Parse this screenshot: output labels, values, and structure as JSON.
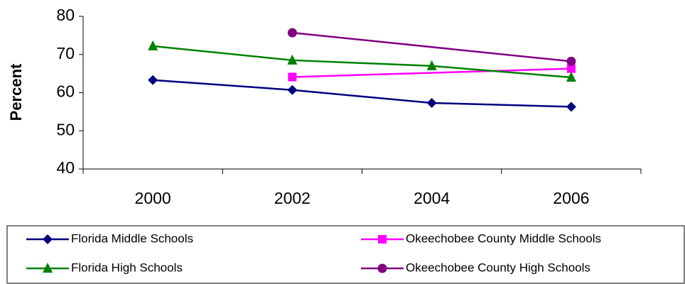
{
  "chart_data": {
    "type": "line",
    "y_axis_label": "Percent",
    "categories": [
      "2000",
      "2002",
      "2004",
      "2006"
    ],
    "ylim": [
      40,
      80
    ],
    "yticks": [
      40,
      50,
      60,
      70,
      80
    ],
    "series": [
      {
        "name": "Florida Middle Schools",
        "color": "#000080",
        "marker": "diamond",
        "x": [
          "2000",
          "2002",
          "2004",
          "2006"
        ],
        "values": [
          63.3,
          60.7,
          57.3,
          56.3
        ]
      },
      {
        "name": "Okeechobee County Middle Schools",
        "color": "#ff00ff",
        "marker": "square",
        "x": [
          "2002",
          "2006"
        ],
        "values": [
          64.1,
          66.3
        ]
      },
      {
        "name": "Florida High Schools",
        "color": "#008000",
        "marker": "triangle",
        "x": [
          "2000",
          "2002",
          "2004",
          "2006"
        ],
        "values": [
          72.2,
          68.5,
          67.0,
          64.0
        ]
      },
      {
        "name": "Okeechobee County High Schools",
        "color": "#800080",
        "marker": "circle",
        "x": [
          "2002",
          "2006"
        ],
        "values": [
          75.7,
          68.2
        ]
      }
    ]
  }
}
